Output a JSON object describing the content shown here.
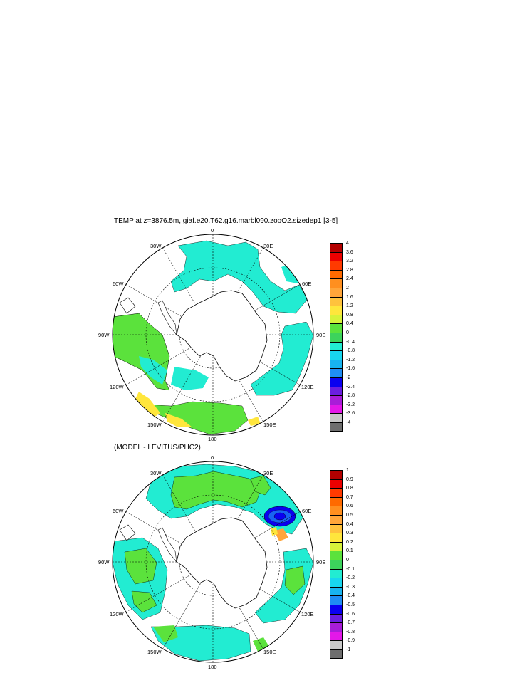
{
  "panel1": {
    "title": "TEMP at z=3876.5m, giaf.e20.T62.g16.marbl090.zooO2.sizedep1 [3-5]",
    "colorbar": {
      "labels": [
        "4",
        "3.6",
        "3.2",
        "2.8",
        "2.4",
        "2",
        "1.6",
        "1.2",
        "0.8",
        "0.4",
        "0",
        "-0.4",
        "-0.8",
        "-1.2",
        "-1.6",
        "-2",
        "-2.4",
        "-2.8",
        "-3.2",
        "-3.6",
        "-4"
      ],
      "colors": [
        "#b30000",
        "#ec0000",
        "#ff3a00",
        "#ff6a00",
        "#ff8f1f",
        "#ffa53a",
        "#ffc23d",
        "#ffe63c",
        "#d7f23a",
        "#5be23c",
        "#3cd35c",
        "#22ecd2",
        "#18d6ef",
        "#18b4f0",
        "#1f8df4",
        "#0a00f0",
        "#6a1ee0",
        "#a81dd8",
        "#e318e8",
        "#c8c8c8",
        "#6e6e6e"
      ]
    },
    "map_labels": {
      "top": "0",
      "bottom": "180",
      "left": "90W",
      "right": "90E",
      "ul1": "30W",
      "ul2": "60W",
      "ur1": "30E",
      "ur2": "60E",
      "ll1": "120W",
      "ll2": "150W",
      "lr1": "120E",
      "lr2": "150E"
    }
  },
  "panel2": {
    "title": "(MODEL - LEVITUS/PHC2)",
    "colorbar": {
      "labels": [
        "1",
        "0.9",
        "0.8",
        "0.7",
        "0.6",
        "0.5",
        "0.4",
        "0.3",
        "0.2",
        "0.1",
        "0",
        "-0.1",
        "-0.2",
        "-0.3",
        "-0.4",
        "-0.5",
        "-0.6",
        "-0.7",
        "-0.8",
        "-0.9",
        "-1"
      ],
      "colors": [
        "#b30000",
        "#ec0000",
        "#ff3a00",
        "#ff6a00",
        "#ff8f1f",
        "#ffa53a",
        "#ffc23d",
        "#ffe63c",
        "#d7f23a",
        "#5be23c",
        "#3cd35c",
        "#22ecd2",
        "#18d6ef",
        "#18b4f0",
        "#1f8df4",
        "#0a00f0",
        "#6a1ee0",
        "#a81dd8",
        "#e318e8",
        "#c8c8c8",
        "#6e6e6e"
      ]
    },
    "map_labels": {
      "top": "0",
      "bottom": "180",
      "left": "90W",
      "right": "90E",
      "ul1": "30W",
      "ul2": "60W",
      "ur1": "30E",
      "ur2": "60E",
      "ll1": "120W",
      "ll2": "150W",
      "lr1": "120E",
      "lr2": "150E"
    }
  },
  "colors": {
    "land": "#ffffff",
    "cyan": "#22ecd2",
    "green": "#5be23c",
    "yellow": "#ffe63c",
    "blue": "#0a00f0",
    "line": "#000000"
  }
}
